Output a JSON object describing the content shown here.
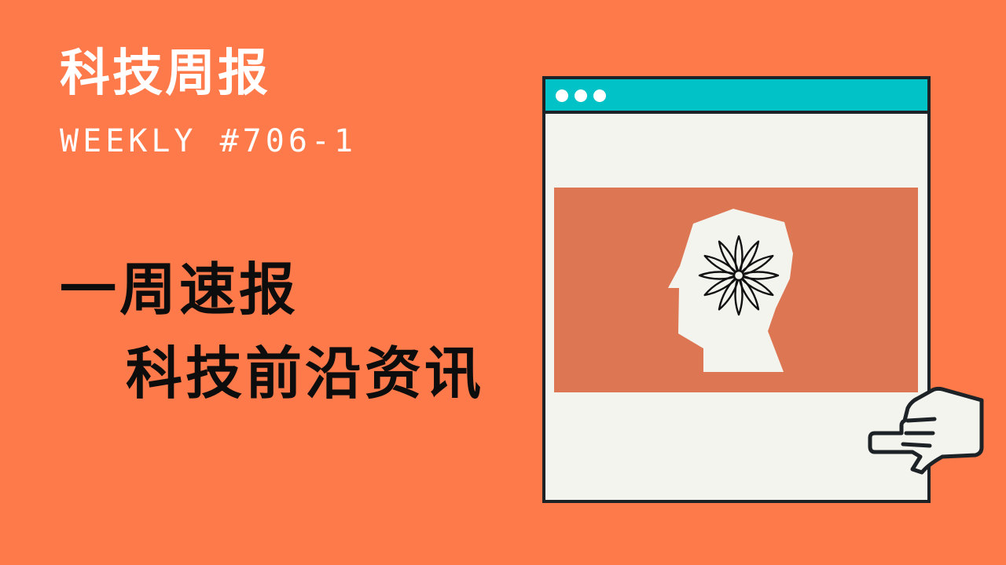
{
  "header": {
    "title": "科技周报",
    "issue": "WEEKLY #706-1"
  },
  "headline": {
    "line1": "一周速报",
    "line2": "科技前沿资讯"
  },
  "illustration": {
    "window_dots": 3,
    "titlebar_color": "#00C2C7",
    "artwork_bg_color": "#DD7653",
    "head_icon": "head-profile-icon",
    "burst_icon": "starburst-icon",
    "pointer_icon": "pointing-hand-icon"
  },
  "colors": {
    "background": "#FF7A4A",
    "text_light": "#FFFFFF",
    "text_dark": "#0D0D0D",
    "outline": "#1D2226",
    "window_body": "#F4F4EF"
  }
}
